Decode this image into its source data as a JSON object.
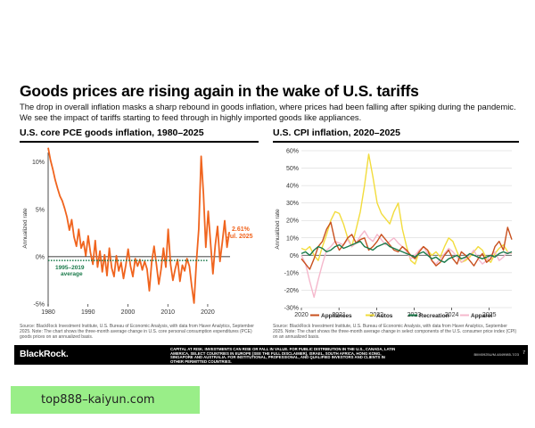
{
  "header": {
    "title": "Goods prices are rising again in the wake of U.S. tariffs",
    "subtitle": "The drop in overall inflation masks a sharp rebound in goods inflation, where prices had been falling after spiking during the pandemic. We see the impact of tariffs starting to feed through in highly imported goods like appliances."
  },
  "left_panel": {
    "source": "Source: BlackRock Investment Institute, U.S. Bureau of Economic Analysis, with data from Haver Analytics, September 2025. Note: The chart shows the three-month average change in U.S. core personal consumption expenditures (PCE) goods prices on an annualized basis."
  },
  "right_panel": {
    "source": "Source: BlackRock Investment Institute, U.S. Bureau of Economic Analysis, with data from Haver Analytics, September 2025. Note: The chart shows the three-month average change in select components of the U.S. consumer price index (CPI) on an annualized basis."
  },
  "footer": {
    "brand": "BlackRock.",
    "disclaimer": "CAPITAL AT RISK. INVESTMENTS CAN RISE OR FALL IN VALUE. FOR PUBLIC DISTRIBUTION IN THE U.S., CANADA, LATIN AMERICA, SELECT COUNTRIES IN EUROPE (SEE THE FULL DISCLAIMER), ISRAEL, SOUTH AFRICA, HONG KONG, SINGAPORE AND AUSTRALIA. FOR INSTITUTIONAL, PROFESSIONAL, AND QUALIFIED INVESTORS AND CLIENTS IN OTHER PERMITTED COUNTRIES.",
    "code": "BIIM0925U/M-4849985-7/23",
    "page": "7"
  },
  "banner": {
    "url": "top888–kaiyun.com",
    "color": "#99ee88"
  },
  "colors": {
    "pce": "#f0641e",
    "average": "#1a7a4a",
    "appliances": "#c8501e",
    "autos": "#f2dc3c",
    "recreation": "#1a7a4a",
    "apparel": "#f5b8cc"
  },
  "chart_data": [
    {
      "type": "line",
      "title": "U.S. core PCE goods inflation, 1980–2025",
      "xlabel": "",
      "ylabel": "Annualized rate",
      "xlim": [
        1980,
        2025.6
      ],
      "ylim": [
        -5,
        11
      ],
      "x_ticks": [
        "1980",
        "1990",
        "2000",
        "2010",
        "2020"
      ],
      "y_ticks": [
        "10%",
        "5%",
        "0%",
        "-5%"
      ],
      "y_tick_values": [
        10,
        5,
        0,
        -5
      ],
      "grid": false,
      "series": [
        {
          "values": [
            11.5,
            10.2,
            9.2,
            8.1,
            7.2,
            6.4,
            5.9,
            5.1,
            4.2,
            2.8,
            3.9,
            2.1,
            1.1,
            2.9,
            0.9,
            1.6,
            0.1,
            2.2,
            0.4,
            -0.8,
            1.7,
            -1.1,
            0.6,
            -1.6,
            0.2,
            -2.0,
            0.9,
            -1.2,
            -2.1,
            0.1,
            -1.5,
            -0.6,
            -2.3,
            -0.9,
            0.8,
            -1.0,
            -2.1,
            -0.2,
            -1.0,
            -0.3,
            -1.4,
            -0.5,
            -1.3,
            -3.6,
            -0.6,
            1.1,
            -0.8,
            -2.9,
            -1.3,
            0.9,
            -1.1,
            2.9,
            -0.8,
            -2.5,
            -1.3,
            -0.3,
            -2.6,
            -0.9,
            -1.5,
            -0.2,
            -1.0,
            -3.1,
            -4.9,
            -0.5,
            2.9,
            10.6,
            6.6,
            1.0,
            4.8,
            1.5,
            -1.8,
            1.2,
            3.2,
            -0.5,
            1.5,
            3.8,
            1.0,
            2.61
          ],
          "start": 1980,
          "step": 0.59
        }
      ],
      "annotations": [
        {
          "text": "2.61%",
          "value": 2.61
        },
        {
          "text": "Jul. 2025"
        },
        {
          "text": "1995–2019"
        },
        {
          "text": "average",
          "value": -0.4
        }
      ]
    },
    {
      "type": "line",
      "title": "U.S. CPI inflation, 2020–2025",
      "xlabel": "",
      "ylabel": "Annualized rate",
      "xlim": [
        2020,
        2025.6
      ],
      "ylim": [
        -30,
        60
      ],
      "x_ticks": [
        "2020",
        "2021",
        "2022",
        "2023",
        "2024",
        "2025"
      ],
      "y_ticks": [
        "60%",
        "50%",
        "40%",
        "30%",
        "20%",
        "10%",
        "0%",
        "-10%",
        "-20%",
        "-30%"
      ],
      "y_tick_values": [
        60,
        50,
        40,
        30,
        20,
        10,
        0,
        -10,
        -20,
        -30
      ],
      "grid": true,
      "legend": "bottom",
      "series": [
        {
          "name": "Appliances",
          "values": [
            -2,
            -5,
            -8,
            -2,
            5,
            8,
            15,
            19,
            8,
            3,
            6,
            10,
            12,
            7,
            9,
            10,
            3,
            5,
            8,
            12,
            9,
            6,
            3,
            2,
            5,
            3,
            0,
            -2,
            2,
            5,
            3,
            -3,
            -6,
            -4,
            0,
            3,
            -2,
            -5,
            2,
            0,
            -3,
            -6,
            -2,
            1,
            -4,
            -2,
            5,
            8,
            3,
            16,
            9
          ]
        },
        {
          "name": "Autos",
          "values": [
            4,
            3,
            5,
            0,
            -3,
            5,
            12,
            20,
            25,
            24,
            18,
            10,
            5,
            15,
            25,
            40,
            58,
            45,
            30,
            24,
            21,
            18,
            25,
            30,
            15,
            5,
            -3,
            -5,
            2,
            5,
            3,
            0,
            2,
            -1,
            5,
            10,
            8,
            2,
            -4,
            -3,
            -1,
            2,
            5,
            3,
            -2,
            -4,
            1,
            4,
            6,
            2,
            1
          ]
        },
        {
          "name": "Recreation",
          "values": [
            1,
            2,
            0,
            3,
            5,
            4,
            2,
            3,
            5,
            6,
            4,
            5,
            6,
            7,
            8,
            5,
            4,
            3,
            5,
            6,
            7,
            5,
            4,
            3,
            2,
            1,
            0,
            -1,
            1,
            2,
            0,
            -2,
            -1,
            -3,
            -4,
            -2,
            -1,
            0,
            -2,
            -1,
            1,
            0,
            -1,
            -2,
            -1,
            0,
            -1,
            1,
            2,
            1,
            2
          ]
        },
        {
          "name": "Apparel",
          "values": [
            0,
            -5,
            -15,
            -24,
            -14,
            -5,
            3,
            5,
            8,
            7,
            6,
            9,
            5,
            7,
            11,
            14,
            10,
            8,
            12,
            9,
            6,
            8,
            10,
            7,
            5,
            2,
            -2,
            0,
            3,
            5,
            1,
            -3,
            -5,
            -2,
            1,
            4,
            2,
            -1,
            -4,
            -2,
            0,
            3,
            -2,
            -5,
            -3,
            0,
            2,
            -3,
            -1,
            2,
            1
          ]
        }
      ]
    }
  ]
}
